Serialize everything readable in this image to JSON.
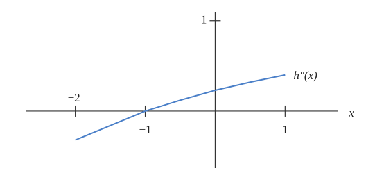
{
  "chart_data": {
    "type": "line",
    "x": [
      -2,
      -1.5,
      -1,
      -0.5,
      0,
      0.5,
      1
    ],
    "values": [
      -0.32,
      -0.16,
      0,
      0.12,
      0.23,
      0.32,
      0.4
    ],
    "color": "#4a7fc8",
    "xlim": [
      -2.7,
      1.75
    ],
    "ylim": [
      -0.63,
      1.09
    ],
    "xticks": [
      {
        "value": -2,
        "label": "−2"
      },
      {
        "value": -1,
        "label": "−1"
      },
      1
    ],
    "yticks": [
      1
    ],
    "xlabel": "x",
    "annotation": "h″(x)"
  }
}
